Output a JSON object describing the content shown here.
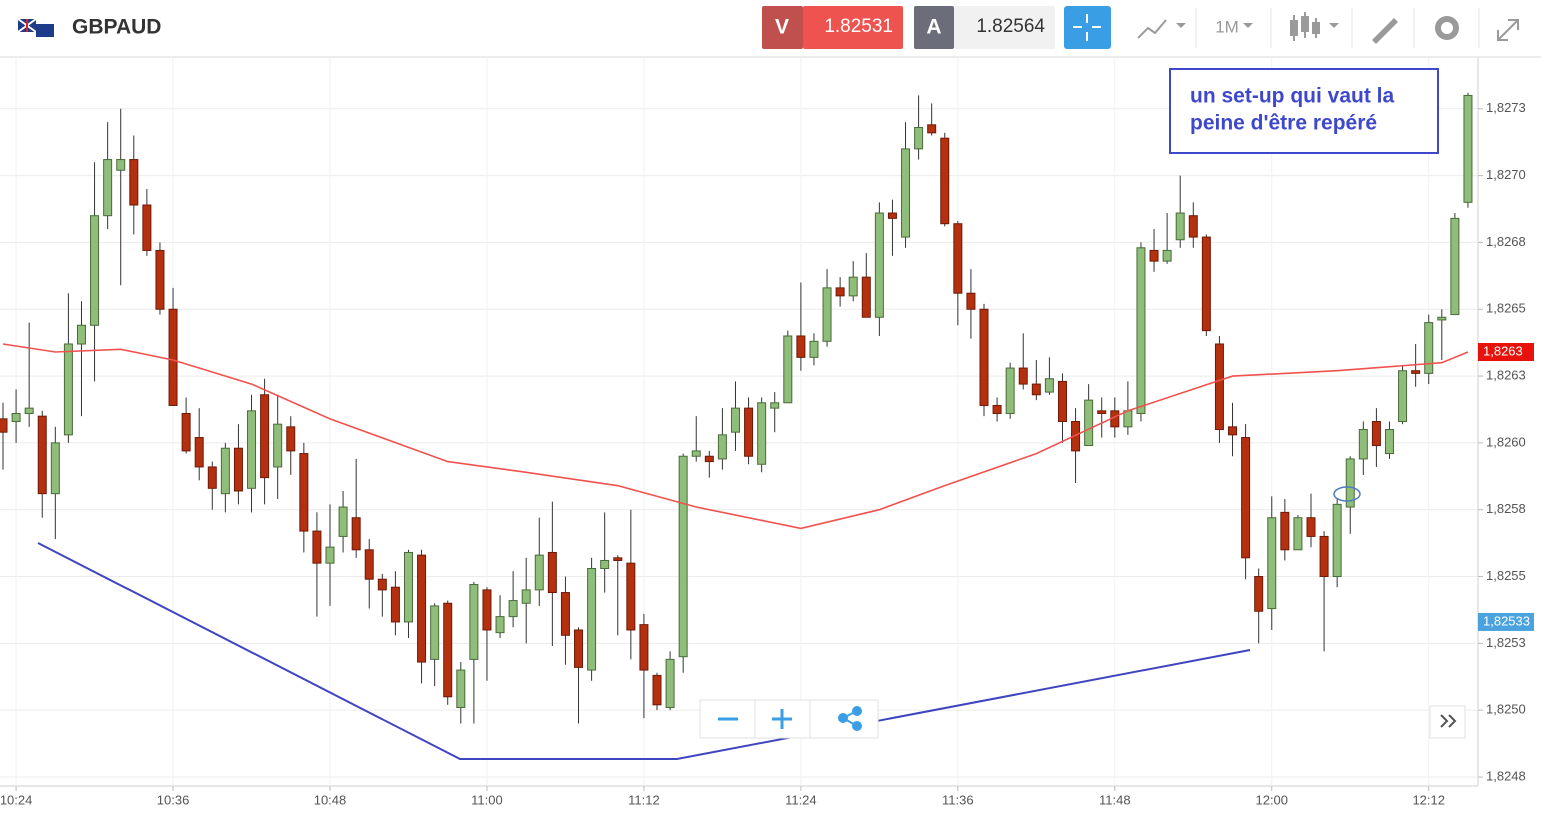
{
  "header": {
    "symbol": "GBPAUD",
    "sell_label": "V",
    "sell_price": "1.82531",
    "buy_label": "A",
    "buy_price": "1.82564",
    "timeframe": "1M"
  },
  "chart_data": {
    "type": "candlestick",
    "categories": [
      null,
      "10:24",
      null,
      null,
      null,
      null,
      null,
      null,
      null,
      null,
      null,
      null,
      null,
      "10:36",
      null,
      null,
      null,
      null,
      null,
      null,
      null,
      null,
      null,
      null,
      null,
      "10:48",
      null,
      null,
      null,
      null,
      null,
      null,
      null,
      null,
      null,
      null,
      null,
      "11:00",
      null,
      null,
      null,
      null,
      null,
      null,
      null,
      null,
      null,
      null,
      null,
      "11:12",
      null,
      null,
      null,
      null,
      null,
      null,
      null,
      null,
      null,
      null,
      null,
      "11:24",
      null,
      null,
      null,
      null,
      null,
      null,
      null,
      null,
      null,
      null,
      null,
      "11:36",
      null,
      null,
      null,
      null,
      null,
      null,
      null,
      null,
      null,
      null,
      null,
      "11:48",
      null,
      null,
      null,
      null,
      null,
      null,
      null,
      null,
      null,
      null,
      null,
      "12:00",
      null,
      null,
      null,
      null,
      null,
      null,
      null,
      null,
      null,
      null,
      null,
      "12:12",
      null,
      null,
      null
    ],
    "open": [
      1.82609,
      1.82608,
      1.82611,
      1.8261,
      1.82581,
      1.82603,
      1.82637,
      1.82644,
      1.82685,
      1.82702,
      1.82706,
      1.82689,
      1.82672,
      1.8265,
      1.82611,
      1.82602,
      1.82591,
      1.82581,
      1.82598,
      1.82583,
      1.82618,
      1.82591,
      1.82606,
      1.82596,
      1.82567,
      1.82555,
      1.82565,
      1.82572,
      1.8256,
      1.82549,
      1.82546,
      1.82533,
      1.82558,
      1.82519,
      1.8254,
      1.82501,
      1.82519,
      1.82545,
      1.82529,
      1.82535,
      1.8254,
      1.82545,
      1.82559,
      1.82544,
      1.8253,
      1.82515,
      1.82553,
      1.82557,
      1.82555,
      1.82532,
      1.82513,
      1.82501,
      1.8252,
      1.82595,
      1.82595,
      1.82594,
      1.82604,
      1.82613,
      1.82592,
      1.82613,
      1.82615,
      1.8264,
      1.82632,
      1.82638,
      1.82658,
      1.82655,
      1.82662,
      1.82647,
      1.82686,
      1.82677,
      1.8271,
      1.82719,
      1.82714,
      1.82682,
      1.82656,
      1.8265,
      1.82614,
      1.82611,
      1.82628,
      1.82622,
      1.82619,
      1.82623,
      1.82608,
      1.82599,
      1.82612,
      1.82612,
      1.82606,
      1.82611,
      1.82672,
      1.82668,
      1.82676,
      1.82685,
      1.82677,
      1.82637,
      1.82606,
      1.82602,
      1.8255,
      1.82538,
      1.82574,
      1.8256,
      1.82572,
      1.82565,
      1.8255,
      1.82576,
      1.82594,
      1.82608,
      1.82596,
      1.82608,
      1.82627,
      1.82626,
      1.82646,
      1.82648,
      1.8269
    ],
    "high": [
      1.82615,
      1.8262,
      1.82645,
      1.82612,
      1.82606,
      1.82656,
      1.82653,
      1.82705,
      1.8272,
      1.82725,
      1.82715,
      1.82695,
      1.82675,
      1.82658,
      1.82617,
      1.82613,
      1.82593,
      1.826,
      1.82607,
      1.82618,
      1.82624,
      1.82618,
      1.8261,
      1.826,
      1.82574,
      1.82577,
      1.82582,
      1.82594,
      1.82564,
      1.82551,
      1.82552,
      1.8256,
      1.8256,
      1.8254,
      1.82541,
      1.82518,
      1.82548,
      1.82546,
      1.82543,
      1.82552,
      1.82557,
      1.82572,
      1.82578,
      1.8255,
      1.82531,
      1.82557,
      1.82574,
      1.82558,
      1.82575,
      1.82536,
      1.82514,
      1.82522,
      1.82596,
      1.8261,
      1.82597,
      1.82613,
      1.82623,
      1.82617,
      1.82617,
      1.82619,
      1.82642,
      1.8266,
      1.82641,
      1.82665,
      1.82662,
      1.82668,
      1.82671,
      1.8269,
      1.82691,
      1.8272,
      1.8273,
      1.82727,
      1.82716,
      1.82683,
      1.82665,
      1.82652,
      1.82617,
      1.8263,
      1.82641,
      1.82631,
      1.82632,
      1.82626,
      1.82613,
      1.82622,
      1.82617,
      1.82617,
      1.82623,
      1.82675,
      1.8268,
      1.82686,
      1.827,
      1.8269,
      1.82678,
      1.8264,
      1.82615,
      1.82607,
      1.82553,
      1.8258,
      1.82579,
      1.82573,
      1.82581,
      1.82567,
      1.82579,
      1.82595,
      1.82608,
      1.82613,
      1.82608,
      1.82629,
      1.82637,
      1.82648,
      1.8265,
      1.82686,
      1.82731
    ],
    "low": [
      1.8259,
      1.826,
      1.82606,
      1.82572,
      1.82564,
      1.826,
      1.8261,
      1.82623,
      1.8268,
      1.82659,
      1.82678,
      1.8267,
      1.82648,
      1.82614,
      1.82596,
      1.82586,
      1.82575,
      1.82574,
      1.82577,
      1.82574,
      1.82577,
      1.82579,
      1.82588,
      1.82559,
      1.82535,
      1.82539,
      1.82559,
      1.82557,
      1.82538,
      1.82535,
      1.82528,
      1.82527,
      1.8251,
      1.82509,
      1.82502,
      1.82495,
      1.82495,
      1.82511,
      1.82527,
      1.82531,
      1.82525,
      1.82539,
      1.82524,
      1.82517,
      1.82495,
      1.82511,
      1.82544,
      1.82528,
      1.82519,
      1.82497,
      1.825,
      1.825,
      1.82514,
      1.82593,
      1.82587,
      1.8259,
      1.82597,
      1.82592,
      1.82589,
      1.82604,
      1.82615,
      1.82627,
      1.82629,
      1.82636,
      1.82651,
      1.82653,
      1.82647,
      1.8264,
      1.8267,
      1.82673,
      1.82706,
      1.82715,
      1.82681,
      1.82644,
      1.82639,
      1.8261,
      1.82608,
      1.82609,
      1.8262,
      1.82616,
      1.82618,
      1.826,
      1.82585,
      1.82599,
      1.82602,
      1.82602,
      1.82603,
      1.82608,
      1.82664,
      1.82667,
      1.82673,
      1.82673,
      1.8264,
      1.826,
      1.82595,
      1.82549,
      1.82525,
      1.8253,
      1.82556,
      1.8256,
      1.82561,
      1.82522,
      1.82546,
      1.82566,
      1.82588,
      1.82591,
      1.82594,
      1.82607,
      1.82621,
      1.82622,
      1.82631,
      1.82648,
      1.82688
    ],
    "close": [
      1.82604,
      1.82611,
      1.82613,
      1.82581,
      1.826,
      1.82637,
      1.82644,
      1.82685,
      1.82706,
      1.82706,
      1.82689,
      1.82672,
      1.8265,
      1.82614,
      1.82597,
      1.82591,
      1.82583,
      1.82598,
      1.82582,
      1.82612,
      1.82587,
      1.82607,
      1.82597,
      1.82567,
      1.82555,
      1.82561,
      1.82576,
      1.8256,
      1.82549,
      1.82545,
      1.82533,
      1.82559,
      1.82518,
      1.82539,
      1.82505,
      1.82515,
      1.82547,
      1.8253,
      1.82535,
      1.82541,
      1.82545,
      1.82558,
      1.82544,
      1.82528,
      1.82516,
      1.82553,
      1.82556,
      1.82556,
      1.8253,
      1.82515,
      1.82502,
      1.82519,
      1.82595,
      1.82597,
      1.82593,
      1.82603,
      1.82613,
      1.82595,
      1.82615,
      1.82615,
      1.8264,
      1.82632,
      1.82638,
      1.82658,
      1.82655,
      1.82662,
      1.82647,
      1.82686,
      1.82684,
      1.8271,
      1.82718,
      1.82716,
      1.82682,
      1.82656,
      1.8265,
      1.82614,
      1.82611,
      1.82628,
      1.82622,
      1.82618,
      1.82624,
      1.82608,
      1.82597,
      1.82616,
      1.82611,
      1.82606,
      1.82612,
      1.82673,
      1.82668,
      1.82672,
      1.82686,
      1.82677,
      1.82642,
      1.82605,
      1.82603,
      1.82557,
      1.82537,
      1.82572,
      1.8256,
      1.82572,
      1.82565,
      1.8255,
      1.82577,
      1.82594,
      1.82605,
      1.82599,
      1.82605,
      1.82627,
      1.82626,
      1.82645,
      1.82647,
      1.82684,
      1.8273
    ],
    "up_color": "#8fbd7a",
    "down_color": "#b5300f",
    "moving_average": {
      "color": "#f0524f",
      "x": [
        0,
        4,
        9,
        13,
        19,
        25,
        34,
        40,
        47,
        53,
        61,
        67,
        72,
        79,
        86,
        94,
        102,
        110,
        112
      ],
      "values": [
        1.82637,
        1.82634,
        1.82635,
        1.82631,
        1.82622,
        1.82609,
        1.82593,
        1.82589,
        1.82584,
        1.82576,
        1.82568,
        1.82575,
        1.82584,
        1.82596,
        1.82612,
        1.82625,
        1.82627,
        1.8263,
        1.82634
      ]
    },
    "ma_price": {
      "value": 1.82634,
      "label": "1,8263",
      "color": "#e8120c"
    },
    "current_price": {
      "value": 1.82533,
      "label": "1,82533",
      "color": "#4aa3df"
    },
    "ylim": [
      1.82472,
      1.82744
    ],
    "yticks": [
      {
        "value": 1.82725,
        "label": "1,8273"
      },
      {
        "value": 1.827,
        "label": "1,8270"
      },
      {
        "value": 1.82675,
        "label": "1,8268"
      },
      {
        "value": 1.8265,
        "label": "1,8265"
      },
      {
        "value": 1.82625,
        "label": "1,8263"
      },
      {
        "value": 1.826,
        "label": "1,8260"
      },
      {
        "value": 1.82575,
        "label": "1,8258"
      },
      {
        "value": 1.8255,
        "label": "1,8255"
      },
      {
        "value": 1.82525,
        "label": "1,8253"
      },
      {
        "value": 1.825,
        "label": "1,8250"
      },
      {
        "value": 1.82475,
        "label": "1,8248"
      }
    ],
    "grid": true,
    "annotation": [
      "un set-up qui vaut la",
      "peine d'être repéré"
    ]
  }
}
